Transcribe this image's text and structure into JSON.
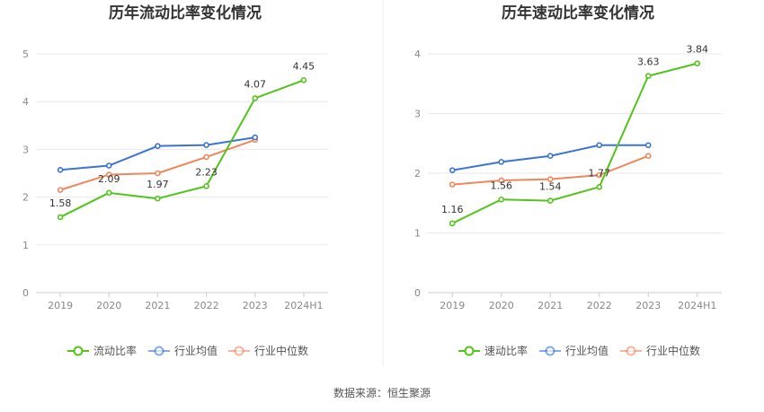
{
  "source_text": "数据来源：恒生聚源",
  "legend_colors": {
    "primary": "#52c41a",
    "industry_avg": "#3b73d6",
    "industry_median": "#f0875a"
  },
  "chart_data": [
    {
      "type": "line",
      "title": "历年流动比率变化情况",
      "categories": [
        "2019",
        "2020",
        "2021",
        "2022",
        "2023",
        "2024H1"
      ],
      "ylim": [
        0,
        5
      ],
      "yticks": [
        0,
        1,
        2,
        3,
        4,
        5
      ],
      "grid": true,
      "legend": "bottom",
      "series": [
        {
          "name": "流动比率",
          "color": "#52c41a",
          "values": [
            1.58,
            2.09,
            1.97,
            2.23,
            4.07,
            4.45
          ],
          "labels": [
            "1.58",
            "2.09",
            "1.97",
            "2.23",
            "4.07",
            "4.45"
          ]
        },
        {
          "name": "行业均值",
          "color": "#3b73d6",
          "values": [
            2.57,
            2.66,
            3.07,
            3.09,
            3.25,
            null
          ]
        },
        {
          "name": "行业中位数",
          "color": "#f0875a",
          "values": [
            2.15,
            2.47,
            2.5,
            2.84,
            3.2,
            null
          ]
        }
      ]
    },
    {
      "type": "line",
      "title": "历年速动比率变化情况",
      "categories": [
        "2019",
        "2020",
        "2021",
        "2022",
        "2023",
        "2024H1"
      ],
      "ylim": [
        0,
        4
      ],
      "yticks": [
        0,
        1,
        2,
        3,
        4
      ],
      "grid": true,
      "legend": "bottom",
      "series": [
        {
          "name": "速动比率",
          "color": "#52c41a",
          "values": [
            1.16,
            1.56,
            1.54,
            1.77,
            3.63,
            3.84
          ],
          "labels": [
            "1.16",
            "1.56",
            "1.54",
            "1.77",
            "3.63",
            "3.84"
          ]
        },
        {
          "name": "行业均值",
          "color": "#3b73d6",
          "values": [
            2.05,
            2.19,
            2.29,
            2.47,
            2.47,
            null
          ]
        },
        {
          "name": "行业中位数",
          "color": "#f0875a",
          "values": [
            1.81,
            1.88,
            1.9,
            1.97,
            2.29,
            null
          ]
        }
      ]
    }
  ]
}
